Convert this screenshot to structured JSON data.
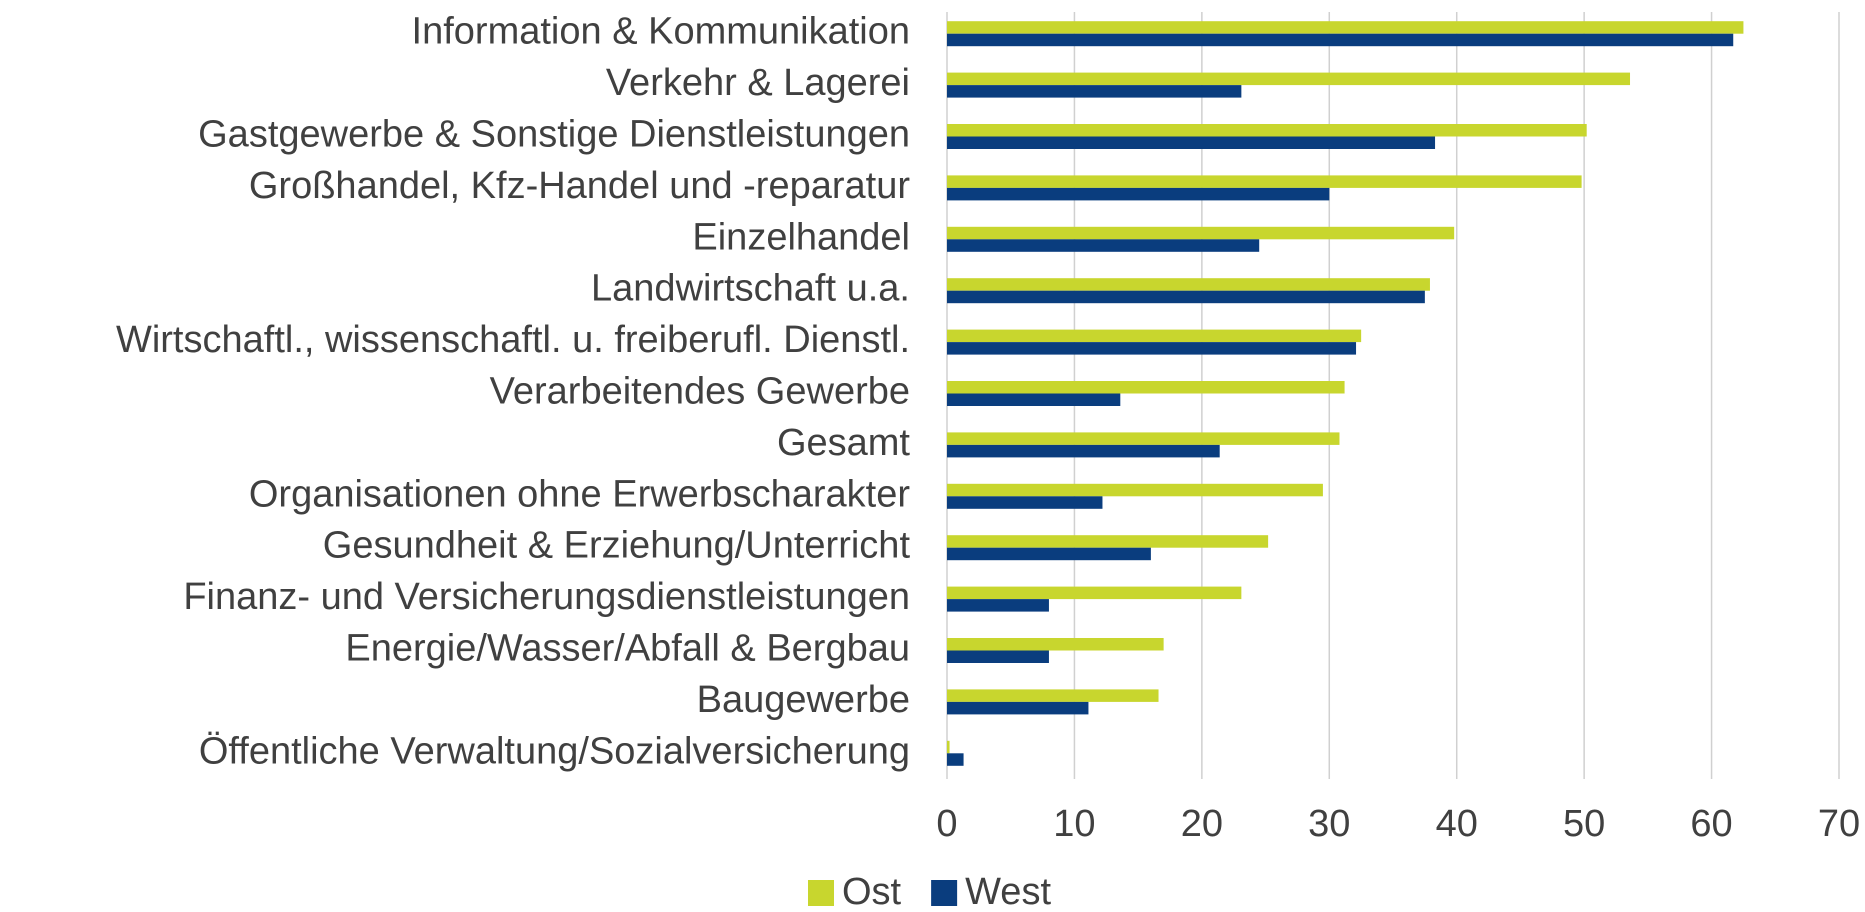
{
  "chart_data": {
    "type": "bar",
    "orientation": "horizontal",
    "categories": [
      "Information & Kommunikation",
      "Verkehr & Lagerei",
      "Gastgewerbe & Sonstige Dienstleistungen",
      "Großhandel, Kfz-Handel und -reparatur",
      "Einzelhandel",
      "Landwirtschaft u.a.",
      "Wirtschaftl., wissenschaftl. u. freiberufl. Dienstl.",
      "Verarbeitendes Gewerbe",
      "Gesamt",
      "Organisationen ohne Erwerbscharakter",
      "Gesundheit & Erziehung/Unterricht",
      "Finanz- und Versicherungsdienstleistungen",
      "Energie/Wasser/Abfall & Bergbau",
      "Baugewerbe",
      "Öffentliche Verwaltung/Sozialversicherung"
    ],
    "series": [
      {
        "name": "Ost",
        "color": "#c8d62e",
        "values": [
          62.5,
          53.6,
          50.2,
          49.8,
          39.8,
          37.9,
          32.5,
          31.2,
          30.8,
          29.5,
          25.2,
          23.1,
          17.0,
          16.6,
          0.2
        ]
      },
      {
        "name": "West",
        "color": "#0a3d7e",
        "values": [
          61.7,
          23.1,
          38.3,
          30.0,
          24.5,
          37.5,
          32.1,
          13.6,
          21.4,
          12.2,
          16.0,
          8.0,
          8.0,
          11.1,
          1.3
        ]
      }
    ],
    "xlim": [
      0,
      70
    ],
    "xticks": [
      0,
      10,
      20,
      30,
      40,
      50,
      60,
      70
    ],
    "grid": true,
    "legend": "bottom"
  }
}
